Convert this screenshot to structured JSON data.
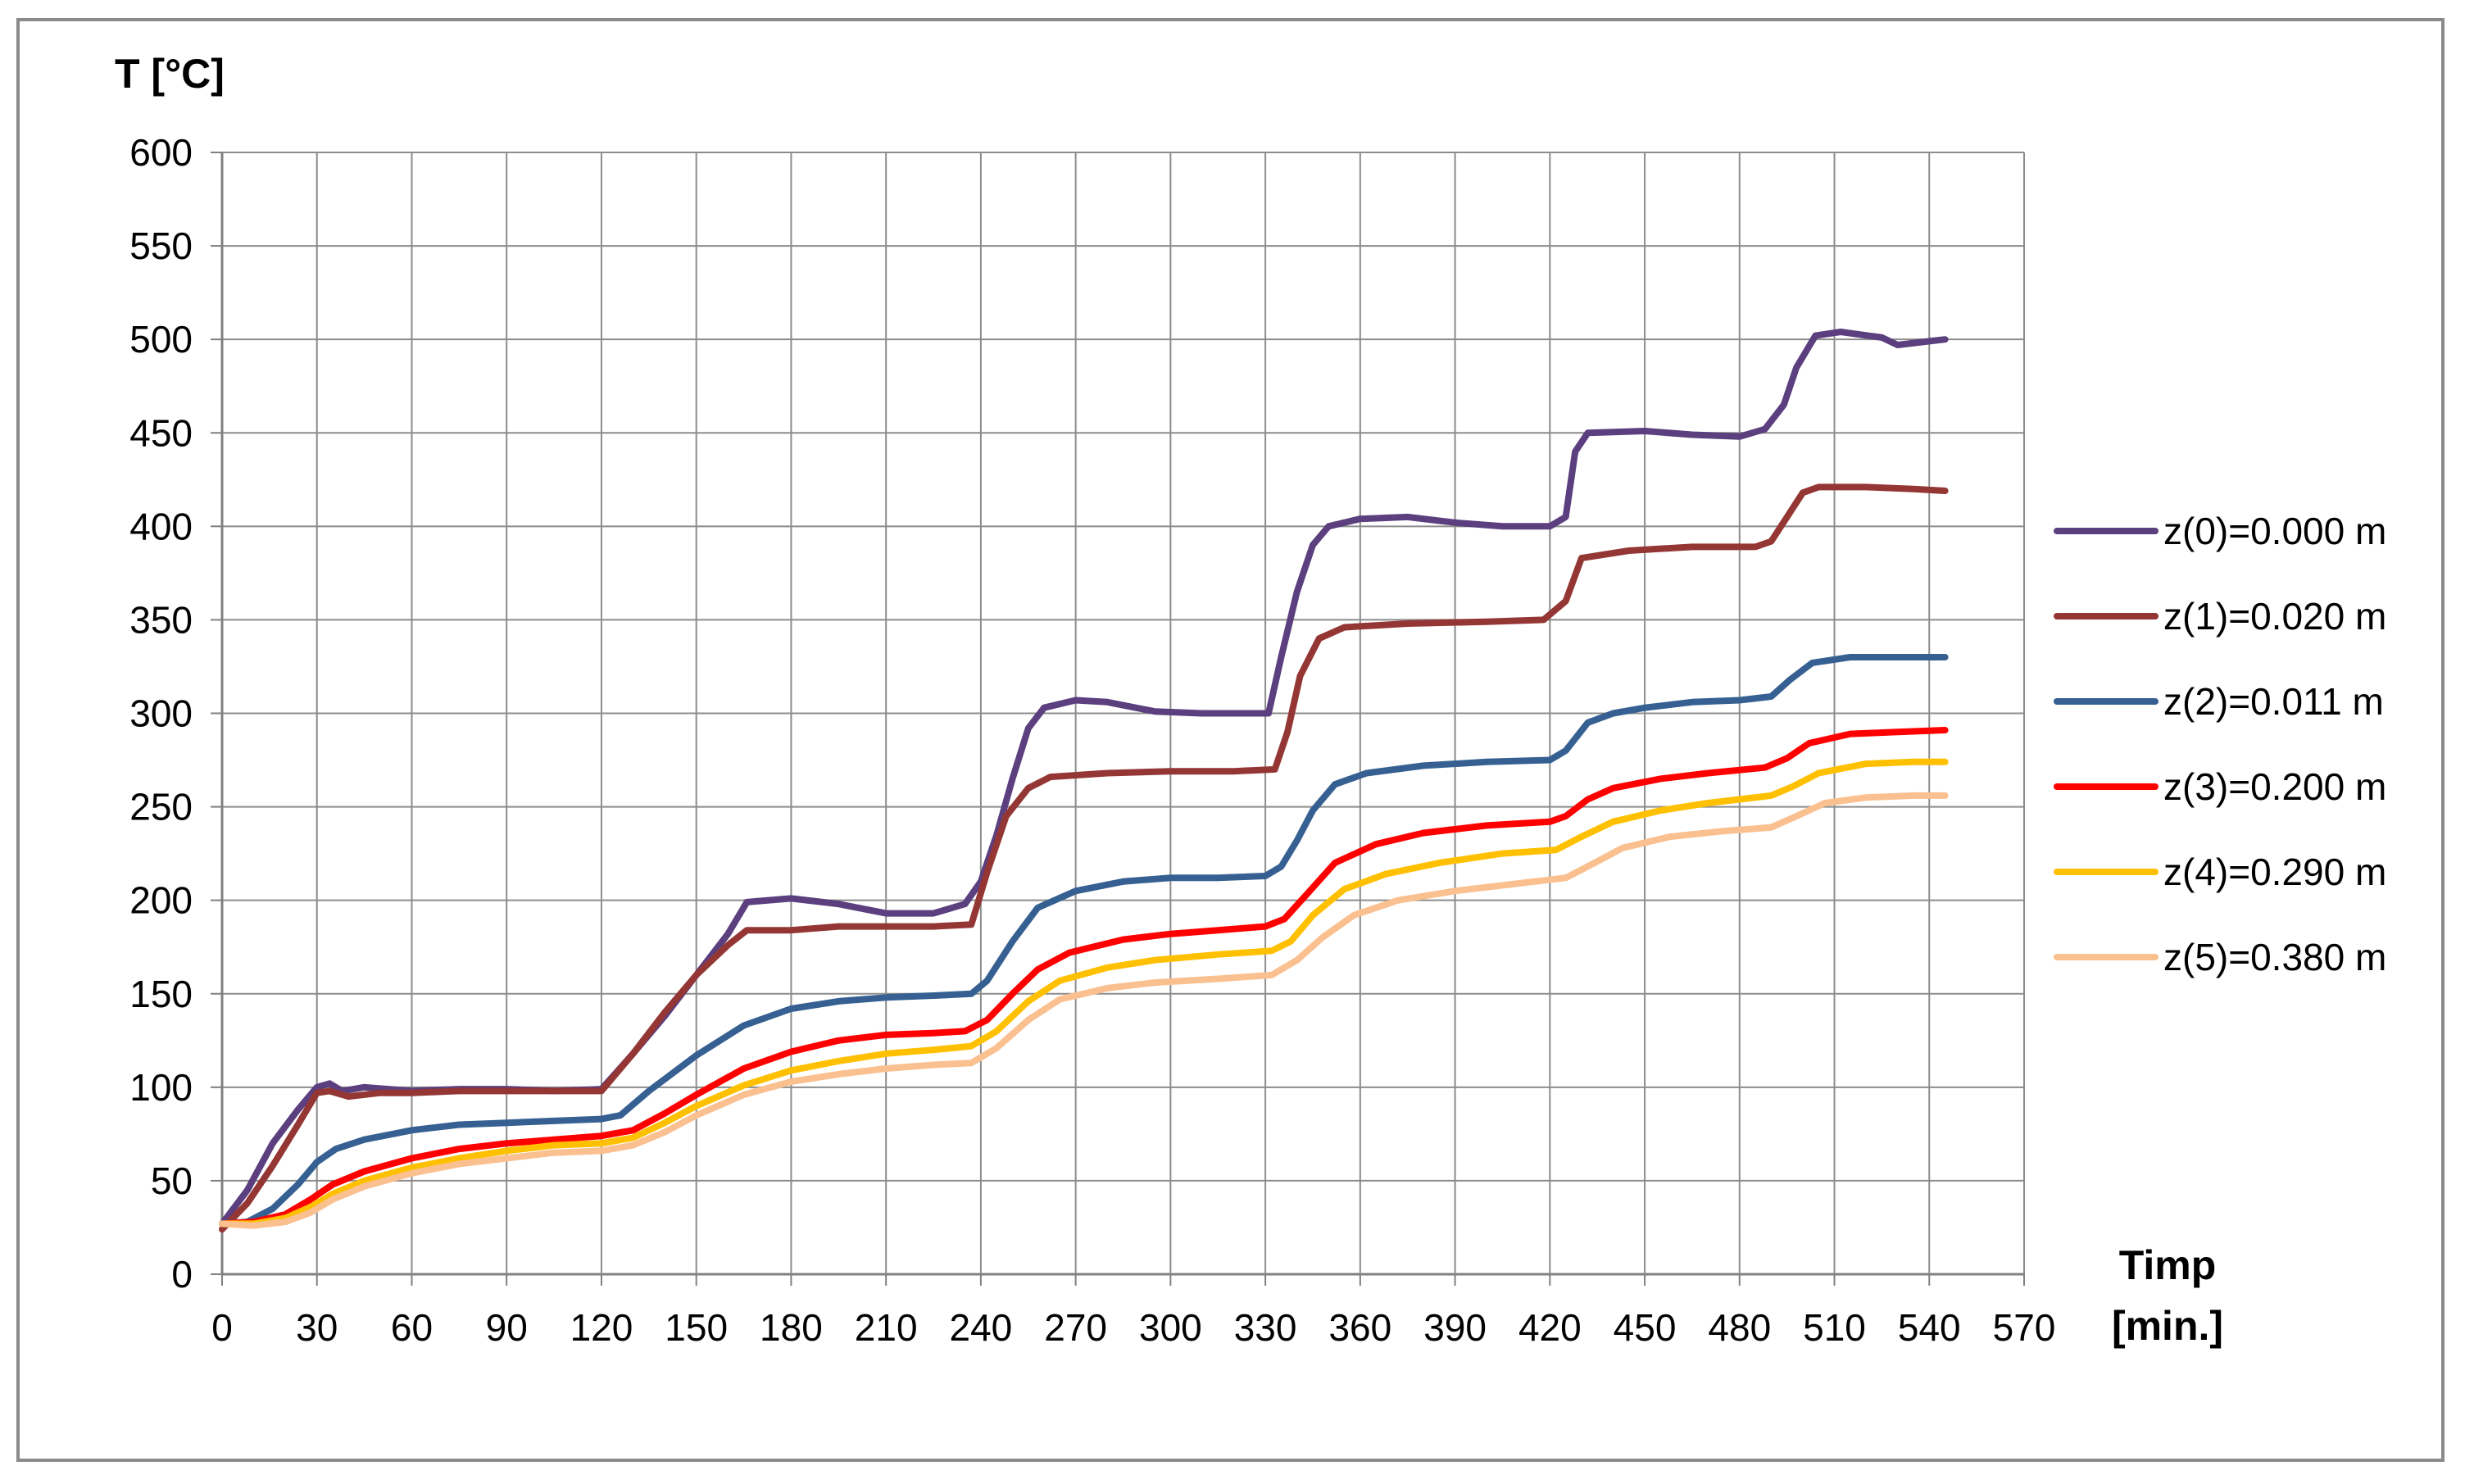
{
  "chart_data": {
    "type": "line",
    "ylabel": "T [°C]",
    "xlabel_line1": "Timp",
    "xlabel_line2": "[min.]",
    "xlim": [
      0,
      570
    ],
    "ylim": [
      0,
      600
    ],
    "xticks": [
      0,
      30,
      60,
      90,
      120,
      150,
      180,
      210,
      240,
      270,
      300,
      330,
      360,
      390,
      420,
      450,
      480,
      510,
      540,
      570
    ],
    "yticks": [
      0,
      50,
      100,
      150,
      200,
      250,
      300,
      350,
      400,
      450,
      500,
      550,
      600
    ],
    "grid": true,
    "legend_position": "right",
    "series": [
      {
        "name": "z(0)=0.000 m",
        "color": "#5b3f7e",
        "points": [
          [
            0,
            27
          ],
          [
            8,
            45
          ],
          [
            16,
            70
          ],
          [
            24,
            88
          ],
          [
            30,
            100
          ],
          [
            34,
            102
          ],
          [
            38,
            98
          ],
          [
            45,
            100
          ],
          [
            60,
            98
          ],
          [
            75,
            99
          ],
          [
            90,
            99
          ],
          [
            105,
            98
          ],
          [
            120,
            99
          ],
          [
            130,
            118
          ],
          [
            140,
            138
          ],
          [
            150,
            160
          ],
          [
            160,
            182
          ],
          [
            166,
            199
          ],
          [
            180,
            201
          ],
          [
            195,
            198
          ],
          [
            210,
            193
          ],
          [
            225,
            193
          ],
          [
            235,
            198
          ],
          [
            240,
            210
          ],
          [
            245,
            235
          ],
          [
            250,
            265
          ],
          [
            255,
            292
          ],
          [
            260,
            303
          ],
          [
            270,
            307
          ],
          [
            280,
            306
          ],
          [
            295,
            301
          ],
          [
            310,
            300
          ],
          [
            325,
            300
          ],
          [
            331,
            300
          ],
          [
            335,
            330
          ],
          [
            340,
            365
          ],
          [
            345,
            390
          ],
          [
            350,
            400
          ],
          [
            360,
            404
          ],
          [
            375,
            405
          ],
          [
            390,
            402
          ],
          [
            405,
            400
          ],
          [
            420,
            400
          ],
          [
            425,
            405
          ],
          [
            428,
            440
          ],
          [
            432,
            450
          ],
          [
            450,
            451
          ],
          [
            465,
            449
          ],
          [
            480,
            448
          ],
          [
            488,
            452
          ],
          [
            494,
            465
          ],
          [
            498,
            485
          ],
          [
            504,
            502
          ],
          [
            512,
            504
          ],
          [
            525,
            501
          ],
          [
            530,
            497
          ],
          [
            540,
            499
          ],
          [
            545,
            500
          ]
        ]
      },
      {
        "name": "z(1)=0.020 m",
        "color": "#943634",
        "points": [
          [
            0,
            24
          ],
          [
            8,
            38
          ],
          [
            16,
            58
          ],
          [
            24,
            80
          ],
          [
            30,
            97
          ],
          [
            34,
            98
          ],
          [
            40,
            95
          ],
          [
            50,
            97
          ],
          [
            60,
            97
          ],
          [
            75,
            98
          ],
          [
            90,
            98
          ],
          [
            105,
            98
          ],
          [
            120,
            98
          ],
          [
            130,
            118
          ],
          [
            140,
            140
          ],
          [
            150,
            160
          ],
          [
            160,
            176
          ],
          [
            166,
            184
          ],
          [
            180,
            184
          ],
          [
            195,
            186
          ],
          [
            210,
            186
          ],
          [
            225,
            186
          ],
          [
            237,
            187
          ],
          [
            242,
            215
          ],
          [
            248,
            245
          ],
          [
            255,
            260
          ],
          [
            262,
            266
          ],
          [
            280,
            268
          ],
          [
            300,
            269
          ],
          [
            320,
            269
          ],
          [
            333,
            270
          ],
          [
            337,
            290
          ],
          [
            341,
            320
          ],
          [
            347,
            340
          ],
          [
            355,
            346
          ],
          [
            375,
            348
          ],
          [
            400,
            349
          ],
          [
            418,
            350
          ],
          [
            425,
            360
          ],
          [
            430,
            383
          ],
          [
            445,
            387
          ],
          [
            465,
            389
          ],
          [
            485,
            389
          ],
          [
            490,
            392
          ],
          [
            495,
            405
          ],
          [
            500,
            418
          ],
          [
            505,
            421
          ],
          [
            520,
            421
          ],
          [
            535,
            420
          ],
          [
            545,
            419
          ]
        ]
      },
      {
        "name": "z(2)=0.011 m",
        "color": "#366092",
        "points": [
          [
            0,
            27
          ],
          [
            8,
            28
          ],
          [
            16,
            35
          ],
          [
            24,
            48
          ],
          [
            30,
            60
          ],
          [
            36,
            67
          ],
          [
            45,
            72
          ],
          [
            60,
            77
          ],
          [
            75,
            80
          ],
          [
            90,
            81
          ],
          [
            105,
            82
          ],
          [
            120,
            83
          ],
          [
            126,
            85
          ],
          [
            135,
            98
          ],
          [
            150,
            117
          ],
          [
            165,
            133
          ],
          [
            180,
            142
          ],
          [
            195,
            146
          ],
          [
            210,
            148
          ],
          [
            225,
            149
          ],
          [
            237,
            150
          ],
          [
            242,
            157
          ],
          [
            250,
            178
          ],
          [
            258,
            196
          ],
          [
            270,
            205
          ],
          [
            285,
            210
          ],
          [
            300,
            212
          ],
          [
            315,
            212
          ],
          [
            330,
            213
          ],
          [
            335,
            218
          ],
          [
            340,
            232
          ],
          [
            345,
            248
          ],
          [
            352,
            262
          ],
          [
            362,
            268
          ],
          [
            380,
            272
          ],
          [
            400,
            274
          ],
          [
            420,
            275
          ],
          [
            425,
            280
          ],
          [
            432,
            295
          ],
          [
            440,
            300
          ],
          [
            450,
            303
          ],
          [
            465,
            306
          ],
          [
            480,
            307
          ],
          [
            490,
            309
          ],
          [
            496,
            318
          ],
          [
            503,
            327
          ],
          [
            515,
            330
          ],
          [
            530,
            330
          ],
          [
            545,
            330
          ]
        ]
      },
      {
        "name": "z(3)=0.200 m",
        "color": "#ff0000",
        "points": [
          [
            0,
            27
          ],
          [
            10,
            28
          ],
          [
            20,
            32
          ],
          [
            28,
            40
          ],
          [
            35,
            48
          ],
          [
            45,
            55
          ],
          [
            60,
            62
          ],
          [
            75,
            67
          ],
          [
            90,
            70
          ],
          [
            105,
            72
          ],
          [
            120,
            74
          ],
          [
            130,
            77
          ],
          [
            140,
            86
          ],
          [
            150,
            96
          ],
          [
            165,
            110
          ],
          [
            180,
            119
          ],
          [
            195,
            125
          ],
          [
            210,
            128
          ],
          [
            225,
            129
          ],
          [
            235,
            130
          ],
          [
            242,
            136
          ],
          [
            250,
            150
          ],
          [
            258,
            163
          ],
          [
            268,
            172
          ],
          [
            285,
            179
          ],
          [
            300,
            182
          ],
          [
            315,
            184
          ],
          [
            330,
            186
          ],
          [
            336,
            190
          ],
          [
            343,
            203
          ],
          [
            352,
            220
          ],
          [
            365,
            230
          ],
          [
            380,
            236
          ],
          [
            400,
            240
          ],
          [
            420,
            242
          ],
          [
            425,
            245
          ],
          [
            432,
            254
          ],
          [
            440,
            260
          ],
          [
            455,
            265
          ],
          [
            470,
            268
          ],
          [
            488,
            271
          ],
          [
            495,
            276
          ],
          [
            502,
            284
          ],
          [
            515,
            289
          ],
          [
            530,
            290
          ],
          [
            545,
            291
          ]
        ]
      },
      {
        "name": "z(4)=0.290 m",
        "color": "#ffc000",
        "points": [
          [
            0,
            27
          ],
          [
            10,
            27
          ],
          [
            20,
            30
          ],
          [
            28,
            36
          ],
          [
            35,
            43
          ],
          [
            45,
            50
          ],
          [
            60,
            57
          ],
          [
            75,
            62
          ],
          [
            90,
            66
          ],
          [
            105,
            69
          ],
          [
            120,
            70
          ],
          [
            130,
            73
          ],
          [
            140,
            81
          ],
          [
            150,
            90
          ],
          [
            165,
            101
          ],
          [
            180,
            109
          ],
          [
            195,
            114
          ],
          [
            210,
            118
          ],
          [
            225,
            120
          ],
          [
            237,
            122
          ],
          [
            245,
            130
          ],
          [
            255,
            146
          ],
          [
            265,
            157
          ],
          [
            280,
            164
          ],
          [
            295,
            168
          ],
          [
            315,
            171
          ],
          [
            332,
            173
          ],
          [
            338,
            178
          ],
          [
            345,
            192
          ],
          [
            355,
            206
          ],
          [
            368,
            214
          ],
          [
            385,
            220
          ],
          [
            405,
            225
          ],
          [
            422,
            227
          ],
          [
            430,
            234
          ],
          [
            440,
            242
          ],
          [
            455,
            248
          ],
          [
            470,
            252
          ],
          [
            490,
            256
          ],
          [
            497,
            261
          ],
          [
            505,
            268
          ],
          [
            520,
            273
          ],
          [
            535,
            274
          ],
          [
            545,
            274
          ]
        ]
      },
      {
        "name": "z(5)=0.380 m",
        "color": "#fac090",
        "points": [
          [
            0,
            27
          ],
          [
            10,
            26
          ],
          [
            20,
            28
          ],
          [
            28,
            33
          ],
          [
            35,
            40
          ],
          [
            45,
            47
          ],
          [
            60,
            54
          ],
          [
            75,
            59
          ],
          [
            90,
            62
          ],
          [
            105,
            65
          ],
          [
            120,
            66
          ],
          [
            130,
            69
          ],
          [
            140,
            76
          ],
          [
            150,
            85
          ],
          [
            165,
            96
          ],
          [
            180,
            103
          ],
          [
            195,
            107
          ],
          [
            210,
            110
          ],
          [
            225,
            112
          ],
          [
            237,
            113
          ],
          [
            245,
            121
          ],
          [
            255,
            136
          ],
          [
            265,
            147
          ],
          [
            280,
            153
          ],
          [
            295,
            156
          ],
          [
            315,
            158
          ],
          [
            332,
            160
          ],
          [
            340,
            168
          ],
          [
            348,
            180
          ],
          [
            358,
            192
          ],
          [
            372,
            200
          ],
          [
            390,
            205
          ],
          [
            410,
            209
          ],
          [
            425,
            212
          ],
          [
            433,
            219
          ],
          [
            443,
            228
          ],
          [
            458,
            234
          ],
          [
            475,
            237
          ],
          [
            490,
            239
          ],
          [
            498,
            245
          ],
          [
            507,
            252
          ],
          [
            520,
            255
          ],
          [
            535,
            256
          ],
          [
            545,
            256
          ]
        ]
      }
    ]
  }
}
